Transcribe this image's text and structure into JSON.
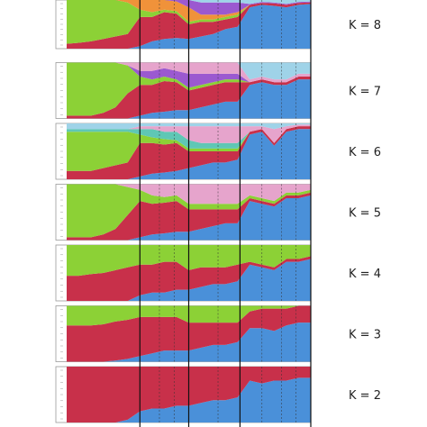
{
  "chart_data": {
    "type": "area",
    "description_kind": "stacked ancestry proportion panels",
    "panel_labels": [
      "K = 8",
      "K = 7",
      "K = 6",
      "K = 5",
      "K = 4",
      "K = 3",
      "K = 2"
    ],
    "ylim": [
      0,
      1
    ],
    "grid": false,
    "colors": {
      "blue": "#4a90d9",
      "red": "#c8304a",
      "green": "#8cd136",
      "pink": "#e6a4cc",
      "orange": "#f0923a",
      "purple": "#9b59d0",
      "lightblue": "#9fd3e8",
      "teal": "#5fc7b5"
    },
    "x": [
      0,
      5,
      10,
      15,
      20,
      25,
      30,
      35,
      40,
      45,
      50,
      55,
      60,
      65,
      70,
      75,
      80,
      85,
      90,
      95,
      100
    ],
    "group_boundaries": [
      30,
      50,
      71
    ],
    "panels": [
      {
        "label": "K = 8",
        "series": [
          {
            "color": "blue",
            "values": [
              0.0,
              0.0,
              0.0,
              0.0,
              0.0,
              0.0,
              0.05,
              0.15,
              0.2,
              0.22,
              0.2,
              0.25,
              0.3,
              0.4,
              0.45,
              0.85,
              0.9,
              0.88,
              0.85,
              0.9,
              0.92
            ]
          },
          {
            "color": "red",
            "values": [
              0.1,
              0.12,
              0.15,
              0.2,
              0.25,
              0.3,
              0.6,
              0.5,
              0.55,
              0.5,
              0.3,
              0.3,
              0.25,
              0.2,
              0.2,
              0.05,
              0.04,
              0.05,
              0.05,
              0.04,
              0.03
            ]
          },
          {
            "color": "green",
            "values": [
              0.9,
              0.88,
              0.85,
              0.8,
              0.75,
              0.65,
              0.15,
              0.1,
              0.05,
              0.05,
              0.05,
              0.05,
              0.05,
              0.05,
              0.05,
              0.0,
              0.0,
              0.0,
              0.0,
              0.0,
              0.0
            ]
          },
          {
            "color": "orange",
            "values": [
              0.0,
              0.0,
              0.0,
              0.0,
              0.0,
              0.05,
              0.2,
              0.25,
              0.2,
              0.2,
              0.3,
              0.1,
              0.1,
              0.05,
              0.05,
              0.0,
              0.0,
              0.0,
              0.0,
              0.0,
              0.0
            ]
          },
          {
            "color": "purple",
            "values": [
              0.0,
              0.0,
              0.0,
              0.0,
              0.0,
              0.0,
              0.0,
              0.0,
              0.0,
              0.03,
              0.15,
              0.25,
              0.25,
              0.25,
              0.2,
              0.02,
              0.02,
              0.02,
              0.02,
              0.02,
              0.02
            ]
          },
          {
            "color": "lightblue",
            "values": [
              0.0,
              0.0,
              0.0,
              0.0,
              0.0,
              0.0,
              0.0,
              0.0,
              0.0,
              0.0,
              0.0,
              0.05,
              0.05,
              0.05,
              0.05,
              0.08,
              0.04,
              0.05,
              0.08,
              0.04,
              0.03
            ]
          }
        ]
      },
      {
        "label": "K = 7",
        "series": [
          {
            "color": "blue",
            "values": [
              0.0,
              0.0,
              0.0,
              0.0,
              0.0,
              0.0,
              0.05,
              0.1,
              0.12,
              0.15,
              0.15,
              0.2,
              0.25,
              0.3,
              0.3,
              0.6,
              0.65,
              0.6,
              0.6,
              0.7,
              0.7
            ]
          },
          {
            "color": "red",
            "values": [
              0.05,
              0.05,
              0.05,
              0.1,
              0.2,
              0.45,
              0.55,
              0.5,
              0.55,
              0.5,
              0.35,
              0.35,
              0.35,
              0.35,
              0.35,
              0.05,
              0.05,
              0.05,
              0.05,
              0.05,
              0.05
            ]
          },
          {
            "color": "green",
            "values": [
              0.95,
              0.95,
              0.95,
              0.9,
              0.8,
              0.5,
              0.15,
              0.1,
              0.08,
              0.05,
              0.05,
              0.05,
              0.05,
              0.05,
              0.05,
              0.0,
              0.0,
              0.0,
              0.0,
              0.0,
              0.0
            ]
          },
          {
            "color": "purple",
            "values": [
              0.0,
              0.0,
              0.0,
              0.0,
              0.0,
              0.0,
              0.1,
              0.15,
              0.15,
              0.15,
              0.25,
              0.2,
              0.15,
              0.1,
              0.1,
              0.0,
              0.0,
              0.0,
              0.0,
              0.0,
              0.0
            ]
          },
          {
            "color": "pink",
            "values": [
              0.0,
              0.0,
              0.0,
              0.0,
              0.0,
              0.05,
              0.15,
              0.15,
              0.1,
              0.15,
              0.2,
              0.2,
              0.2,
              0.2,
              0.2,
              0.05,
              0.05,
              0.05,
              0.05,
              0.05,
              0.05
            ]
          },
          {
            "color": "lightblue",
            "values": [
              0.0,
              0.0,
              0.0,
              0.0,
              0.0,
              0.0,
              0.0,
              0.0,
              0.0,
              0.0,
              0.0,
              0.0,
              0.0,
              0.0,
              0.0,
              0.3,
              0.25,
              0.3,
              0.3,
              0.2,
              0.2
            ]
          }
        ]
      },
      {
        "label": "K = 6",
        "series": [
          {
            "color": "blue",
            "values": [
              0.0,
              0.0,
              0.0,
              0.0,
              0.0,
              0.0,
              0.05,
              0.1,
              0.12,
              0.15,
              0.2,
              0.25,
              0.3,
              0.3,
              0.35,
              0.8,
              0.85,
              0.6,
              0.85,
              0.9,
              0.9
            ]
          },
          {
            "color": "red",
            "values": [
              0.15,
              0.15,
              0.15,
              0.2,
              0.25,
              0.3,
              0.6,
              0.55,
              0.5,
              0.5,
              0.3,
              0.25,
              0.2,
              0.2,
              0.15,
              0.05,
              0.05,
              0.05,
              0.05,
              0.05,
              0.05
            ]
          },
          {
            "color": "green",
            "values": [
              0.7,
              0.7,
              0.7,
              0.65,
              0.6,
              0.55,
              0.15,
              0.1,
              0.1,
              0.05,
              0.05,
              0.05,
              0.05,
              0.05,
              0.05,
              0.0,
              0.0,
              0.0,
              0.0,
              0.0,
              0.0
            ]
          },
          {
            "color": "teal",
            "values": [
              0.05,
              0.05,
              0.05,
              0.05,
              0.05,
              0.05,
              0.1,
              0.15,
              0.13,
              0.15,
              0.15,
              0.1,
              0.1,
              0.1,
              0.1,
              0.0,
              0.0,
              0.0,
              0.0,
              0.0,
              0.0
            ]
          },
          {
            "color": "pink",
            "values": [
              0.0,
              0.0,
              0.0,
              0.0,
              0.0,
              0.0,
              0.05,
              0.05,
              0.1,
              0.1,
              0.25,
              0.3,
              0.3,
              0.3,
              0.3,
              0.1,
              0.05,
              0.25,
              0.05,
              0.03,
              0.03
            ]
          },
          {
            "color": "lightblue",
            "values": [
              0.1,
              0.1,
              0.1,
              0.1,
              0.1,
              0.1,
              0.05,
              0.05,
              0.05,
              0.05,
              0.05,
              0.05,
              0.05,
              0.05,
              0.05,
              0.05,
              0.05,
              0.1,
              0.05,
              0.02,
              0.02
            ]
          }
        ]
      },
      {
        "label": "K = 5",
        "series": [
          {
            "color": "blue",
            "values": [
              0.0,
              0.0,
              0.0,
              0.0,
              0.0,
              0.0,
              0.05,
              0.1,
              0.12,
              0.15,
              0.15,
              0.2,
              0.25,
              0.3,
              0.3,
              0.7,
              0.65,
              0.6,
              0.75,
              0.75,
              0.8
            ]
          },
          {
            "color": "red",
            "values": [
              0.05,
              0.05,
              0.05,
              0.1,
              0.2,
              0.45,
              0.65,
              0.55,
              0.55,
              0.55,
              0.4,
              0.35,
              0.3,
              0.25,
              0.25,
              0.05,
              0.05,
              0.05,
              0.05,
              0.05,
              0.05
            ]
          },
          {
            "color": "green",
            "values": [
              0.95,
              0.95,
              0.95,
              0.9,
              0.8,
              0.5,
              0.2,
              0.15,
              0.1,
              0.1,
              0.1,
              0.1,
              0.1,
              0.1,
              0.1,
              0.05,
              0.05,
              0.05,
              0.05,
              0.05,
              0.05
            ]
          },
          {
            "color": "pink",
            "values": [
              0.0,
              0.0,
              0.0,
              0.0,
              0.0,
              0.05,
              0.1,
              0.2,
              0.23,
              0.2,
              0.35,
              0.35,
              0.35,
              0.35,
              0.35,
              0.2,
              0.25,
              0.3,
              0.15,
              0.15,
              0.1
            ]
          }
        ]
      },
      {
        "label": "K = 4",
        "series": [
          {
            "color": "blue",
            "values": [
              0.0,
              0.0,
              0.0,
              0.0,
              0.0,
              0.0,
              0.1,
              0.15,
              0.15,
              0.2,
              0.2,
              0.25,
              0.3,
              0.3,
              0.35,
              0.65,
              0.6,
              0.55,
              0.7,
              0.7,
              0.75
            ]
          },
          {
            "color": "red",
            "values": [
              0.45,
              0.45,
              0.48,
              0.5,
              0.55,
              0.6,
              0.55,
              0.5,
              0.55,
              0.5,
              0.35,
              0.35,
              0.3,
              0.3,
              0.3,
              0.05,
              0.05,
              0.05,
              0.05,
              0.05,
              0.05
            ]
          },
          {
            "color": "green",
            "values": [
              0.55,
              0.55,
              0.52,
              0.5,
              0.45,
              0.4,
              0.35,
              0.35,
              0.3,
              0.3,
              0.45,
              0.4,
              0.4,
              0.4,
              0.35,
              0.3,
              0.35,
              0.4,
              0.25,
              0.25,
              0.2
            ]
          }
        ]
      },
      {
        "label": "K = 3",
        "series": [
          {
            "color": "blue",
            "values": [
              0.0,
              0.0,
              0.0,
              0.0,
              0.02,
              0.05,
              0.1,
              0.15,
              0.2,
              0.2,
              0.2,
              0.25,
              0.3,
              0.3,
              0.35,
              0.6,
              0.6,
              0.55,
              0.65,
              0.7,
              0.7
            ]
          },
          {
            "color": "red",
            "values": [
              0.65,
              0.65,
              0.65,
              0.67,
              0.7,
              0.7,
              0.7,
              0.65,
              0.6,
              0.6,
              0.5,
              0.45,
              0.4,
              0.4,
              0.35,
              0.3,
              0.35,
              0.4,
              0.3,
              0.3,
              0.3
            ]
          },
          {
            "color": "green",
            "values": [
              0.35,
              0.35,
              0.35,
              0.33,
              0.28,
              0.25,
              0.2,
              0.2,
              0.2,
              0.2,
              0.3,
              0.3,
              0.3,
              0.3,
              0.3,
              0.1,
              0.05,
              0.05,
              0.05,
              0.0,
              0.0
            ]
          }
        ]
      },
      {
        "label": "K = 2",
        "series": [
          {
            "color": "blue",
            "values": [
              0.0,
              0.0,
              0.0,
              0.0,
              0.0,
              0.05,
              0.2,
              0.25,
              0.25,
              0.3,
              0.3,
              0.35,
              0.4,
              0.4,
              0.45,
              0.75,
              0.7,
              0.75,
              0.75,
              0.8,
              0.8
            ]
          },
          {
            "color": "red",
            "values": [
              1.0,
              1.0,
              1.0,
              1.0,
              1.0,
              0.95,
              0.8,
              0.75,
              0.75,
              0.7,
              0.7,
              0.65,
              0.6,
              0.6,
              0.55,
              0.25,
              0.3,
              0.25,
              0.25,
              0.2,
              0.2
            ]
          }
        ]
      }
    ]
  }
}
